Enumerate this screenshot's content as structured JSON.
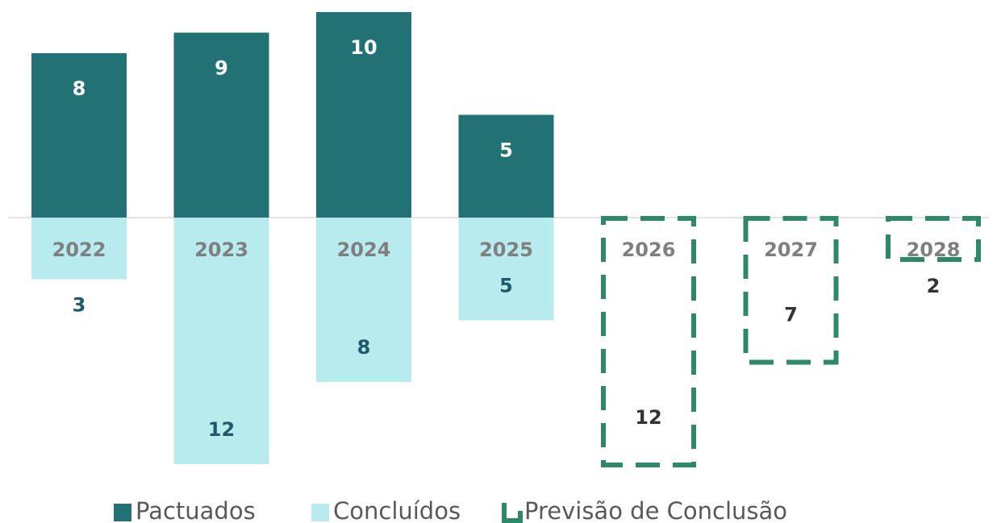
{
  "chart_data": {
    "type": "diverging-bar",
    "categories": [
      "2022",
      "2023",
      "2024",
      "2025",
      "2026",
      "2027",
      "2028"
    ],
    "series": [
      {
        "name": "Pactuados",
        "color": "#217175",
        "values": [
          8,
          9,
          10,
          5,
          null,
          null,
          null
        ]
      },
      {
        "name": "Concluídos",
        "color": "#b8ebee",
        "values": [
          3,
          12,
          8,
          5,
          null,
          null,
          null
        ]
      },
      {
        "name": "Previsão de Conclusão",
        "color": "#2e8a66",
        "values": [
          null,
          null,
          null,
          null,
          12,
          7,
          2
        ]
      }
    ]
  }
}
